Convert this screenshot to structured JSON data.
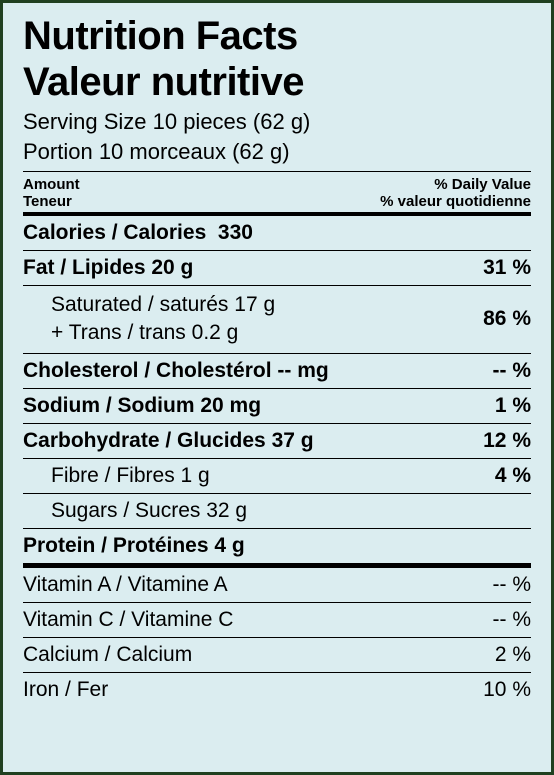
{
  "title_en": "Nutrition Facts",
  "title_fr": "Valeur nutritive",
  "serving_en": "Serving Size 10 pieces (62 g)",
  "serving_fr": "Portion 10 morceaux (62 g)",
  "amount_en": "Amount",
  "amount_fr": "Teneur",
  "dv_en": "% Daily Value",
  "dv_fr": "% valeur quotidienne",
  "calories": {
    "label": "Calories / Calories",
    "value": "330"
  },
  "rows": [
    {
      "label": "Fat / Lipides 20 g",
      "pct": "31 %",
      "bold": true,
      "sub": false
    },
    {
      "label": "Saturated / saturés 17 g<br>+ Trans / trans 0.2 g",
      "pct": "86 %",
      "bold": false,
      "sub": true,
      "tall": true
    },
    {
      "label": "Cholesterol / Cholestérol -- mg",
      "pct": "-- %",
      "bold": true,
      "sub": false
    },
    {
      "label": "Sodium / Sodium 20 mg",
      "pct": "1 %",
      "bold": true,
      "sub": false
    },
    {
      "label": "Carbohydrate / Glucides 37 g",
      "pct": "12 %",
      "bold": true,
      "sub": false
    },
    {
      "label": "Fibre / Fibres 1 g",
      "pct": "4 %",
      "bold": false,
      "sub": true
    },
    {
      "label": "Sugars / Sucres 32 g",
      "pct": "",
      "bold": false,
      "sub": true
    },
    {
      "label": "Protein / Protéines 4 g",
      "pct": "",
      "bold": true,
      "sub": false
    }
  ],
  "vitamins": [
    {
      "label": "Vitamin A / Vitamine A",
      "pct": "-- %"
    },
    {
      "label": "Vitamin C / Vitamine C",
      "pct": "-- %"
    },
    {
      "label": "Calcium / Calcium",
      "pct": "2 %"
    },
    {
      "label": "Iron / Fer",
      "pct": "10 %"
    }
  ]
}
